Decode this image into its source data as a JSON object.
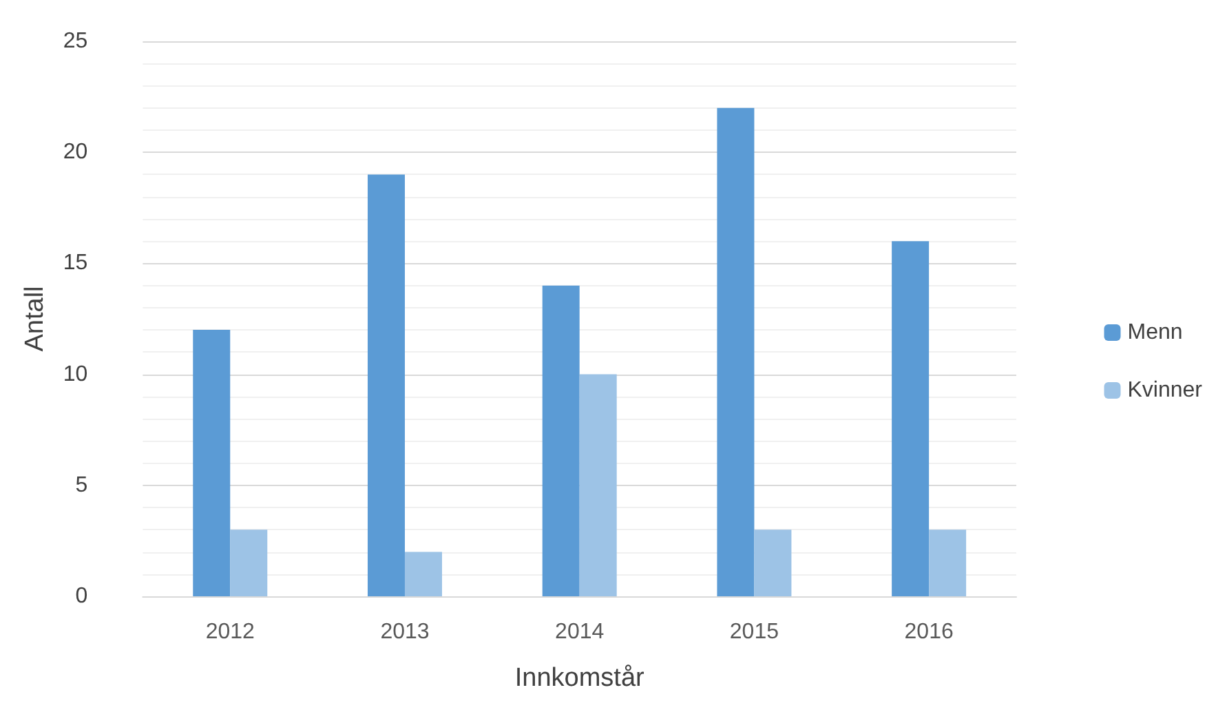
{
  "chart_data": {
    "type": "bar",
    "xlabel": "Innkomstår",
    "ylabel": "Antall",
    "categories": [
      "2012",
      "2013",
      "2014",
      "2015",
      "2016"
    ],
    "series": [
      {
        "name": "Menn",
        "color": "#5b9bd5",
        "values": [
          12,
          19,
          14,
          22,
          16
        ]
      },
      {
        "name": "Kvinner",
        "color": "#9dc3e6",
        "values": [
          3,
          2,
          10,
          3,
          3
        ]
      }
    ],
    "ylim": [
      0,
      25
    ],
    "yticks": [
      0,
      5,
      10,
      15,
      20,
      25
    ],
    "grid": "y",
    "legend": "right"
  }
}
